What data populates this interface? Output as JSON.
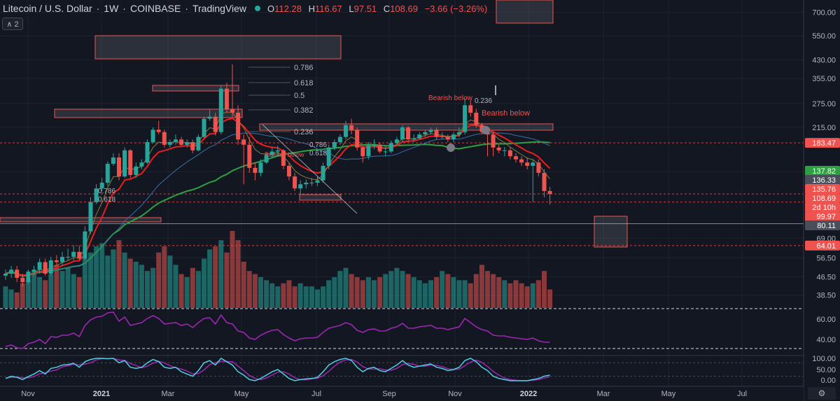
{
  "header": {
    "title": "Litecoin / U.S. Dollar",
    "interval": "1W",
    "exchange": "COINBASE",
    "brand": "TradingView",
    "open_label": "O",
    "open": "112.28",
    "high_label": "H",
    "high": "116.67",
    "low_label": "L",
    "low": "97.51",
    "close_label": "C",
    "close": "108.69",
    "change": "−3.66 (−3.26%)"
  },
  "collapse_button": {
    "label": "∧ 2"
  },
  "colors": {
    "background": "#131722",
    "up": "#26a69a",
    "down": "#ef5350",
    "ema_short": "#e91e1e",
    "ma_long": "#2ea043",
    "ma_mid": "#3a6ea5",
    "rsi": "#9c27b0",
    "stoch_k": "#4dd0e1",
    "stoch_d": "#9c27b0"
  },
  "annotations": {
    "fib_top": [
      "0.786",
      "0.618",
      "0.5",
      "0.382",
      "0.236"
    ],
    "fib_mid": [
      "0.786",
      "0.618"
    ],
    "fib_bottom": [
      "0.786",
      "0.618"
    ],
    "bearish_1": "Bearish below",
    "bearish_2": "Bearish below",
    "bearish_3": "Bearish below",
    "fib_right": "0.236"
  },
  "chart_data": {
    "type": "candlestick",
    "title": "Litecoin / U.S. Dollar",
    "interval": "1W",
    "y_scale": "log",
    "ylim": [
      35,
      750
    ],
    "price_ticks": [
      "700.00",
      "550.00",
      "430.00",
      "355.00",
      "275.00",
      "215.00",
      "136.33",
      "69.00",
      "56.50",
      "46.50",
      "38.50"
    ],
    "price_markers": [
      {
        "label": "183.47",
        "value": 183.47,
        "color": "#ef5350"
      },
      {
        "label": "137.82",
        "value": 137.82,
        "color": "#2ea043"
      },
      {
        "label": "136.33",
        "value": 136.33,
        "color": "#4a4e5a"
      },
      {
        "label": "135.76",
        "value": 135.76,
        "color": "#ef5350"
      },
      {
        "label": "108.69",
        "value": 108.69,
        "color": "#ef5350"
      },
      {
        "label": "2d 10h",
        "value": 104.5,
        "color": "#ef5350"
      },
      {
        "label": "99.97",
        "value": 99.97,
        "color": "#ef5350"
      },
      {
        "label": "80.11",
        "value": 80.11,
        "color": "#4a4e5a"
      },
      {
        "label": "64.01",
        "value": 64.01,
        "color": "#ef5350"
      }
    ],
    "x_labels": [
      "Nov",
      "2021",
      "Mar",
      "May",
      "Jul",
      "Sep",
      "Nov",
      "2022",
      "Mar",
      "May",
      "Jul"
    ],
    "candles": {
      "o": [
        47,
        48,
        50,
        46,
        44,
        49,
        50,
        54,
        48,
        55,
        54,
        57,
        57,
        60,
        56,
        74,
        100,
        115,
        122,
        148,
        158,
        130,
        170,
        132,
        144,
        150,
        185,
        210,
        205,
        180,
        185,
        190,
        180,
        185,
        170,
        195,
        235,
        240,
        205,
        320,
        260,
        250,
        190,
        180,
        142,
        135,
        150,
        162,
        168,
        170,
        145,
        130,
        115,
        120,
        122,
        122,
        125,
        145,
        175,
        185,
        195,
        220,
        210,
        175,
        160,
        178,
        180,
        168,
        168,
        183,
        190,
        215,
        190,
        192,
        200,
        205,
        210,
        195,
        196,
        190,
        200,
        205,
        270,
        250,
        220,
        205,
        200,
        175,
        170,
        170,
        160,
        155,
        150,
        145,
        150,
        135,
        112
      ],
      "c": [
        48,
        50,
        46,
        44,
        49,
        50,
        54,
        48,
        55,
        54,
        57,
        57,
        60,
        56,
        74,
        100,
        115,
        122,
        148,
        158,
        130,
        170,
        132,
        144,
        150,
        185,
        210,
        205,
        180,
        185,
        190,
        180,
        185,
        170,
        195,
        235,
        240,
        205,
        320,
        260,
        250,
        190,
        180,
        142,
        135,
        150,
        162,
        168,
        170,
        145,
        130,
        115,
        120,
        122,
        122,
        125,
        145,
        175,
        185,
        195,
        220,
        210,
        175,
        160,
        178,
        180,
        168,
        168,
        183,
        190,
        215,
        190,
        192,
        200,
        205,
        210,
        195,
        196,
        190,
        200,
        205,
        270,
        250,
        220,
        205,
        200,
        175,
        170,
        170,
        160,
        155,
        150,
        145,
        150,
        135,
        112,
        108.69
      ],
      "h": [
        50,
        52,
        52,
        48,
        50,
        52,
        56,
        56,
        57,
        58,
        60,
        62,
        64,
        64,
        78,
        105,
        120,
        128,
        152,
        165,
        165,
        175,
        172,
        150,
        155,
        190,
        215,
        230,
        210,
        190,
        200,
        195,
        190,
        190,
        200,
        240,
        260,
        250,
        330,
        340,
        410,
        270,
        200,
        195,
        150,
        155,
        165,
        175,
        178,
        172,
        150,
        135,
        125,
        126,
        128,
        130,
        150,
        180,
        190,
        200,
        230,
        235,
        215,
        178,
        185,
        190,
        185,
        178,
        188,
        195,
        220,
        218,
        200,
        205,
        210,
        215,
        215,
        205,
        200,
        205,
        215,
        290,
        285,
        260,
        225,
        210,
        205,
        180,
        176,
        175,
        165,
        160,
        158,
        155,
        155,
        140,
        116.67
      ],
      "l": [
        45,
        46,
        44,
        42,
        43,
        47,
        48,
        47,
        47,
        52,
        52,
        55,
        55,
        55,
        55,
        72,
        98,
        112,
        118,
        145,
        125,
        128,
        128,
        128,
        140,
        148,
        182,
        200,
        175,
        175,
        180,
        178,
        175,
        165,
        168,
        192,
        230,
        198,
        200,
        250,
        240,
        180,
        120,
        135,
        125,
        130,
        148,
        158,
        160,
        140,
        125,
        112,
        108,
        115,
        118,
        118,
        122,
        140,
        170,
        180,
        190,
        200,
        170,
        150,
        155,
        172,
        165,
        160,
        165,
        180,
        185,
        185,
        185,
        190,
        195,
        200,
        190,
        190,
        185,
        185,
        195,
        200,
        240,
        215,
        200,
        160,
        160,
        165,
        160,
        155,
        150,
        145,
        140,
        100,
        130,
        105,
        97.51
      ]
    },
    "volume": [
      7,
      6,
      5,
      8,
      9,
      12,
      10,
      9,
      11,
      14,
      12,
      13,
      11,
      10,
      16,
      18,
      20,
      21,
      17,
      19,
      22,
      18,
      16,
      15,
      14,
      12,
      13,
      18,
      20,
      17,
      14,
      11,
      10,
      13,
      12,
      16,
      19,
      20,
      22,
      18,
      25,
      22,
      15,
      12,
      11,
      10,
      9,
      8,
      7,
      8,
      9,
      7,
      8,
      7,
      7,
      6,
      7,
      9,
      10,
      12,
      13,
      11,
      10,
      9,
      10,
      9,
      10,
      11,
      12,
      13,
      12,
      11,
      10,
      9,
      8,
      9,
      10,
      12,
      11,
      10,
      9,
      9,
      8,
      11,
      14,
      12,
      11,
      10,
      9,
      8,
      9,
      8,
      7,
      8,
      9,
      12,
      6
    ],
    "rsi_ticks": [
      "60.00",
      "40.00"
    ],
    "rsi": [
      30,
      32,
      28,
      27,
      34,
      36,
      40,
      34,
      44,
      43,
      46,
      46,
      49,
      44,
      60,
      68,
      72,
      73,
      78,
      79,
      66,
      72,
      60,
      62,
      64,
      70,
      74,
      70,
      62,
      63,
      64,
      60,
      62,
      57,
      64,
      70,
      71,
      62,
      75,
      64,
      62,
      52,
      50,
      42,
      40,
      46,
      50,
      53,
      54,
      47,
      42,
      38,
      41,
      42,
      42,
      43,
      50,
      56,
      58,
      60,
      64,
      61,
      53,
      50,
      54,
      55,
      52,
      52,
      56,
      58,
      63,
      56,
      56,
      58,
      59,
      60,
      56,
      56,
      54,
      56,
      58,
      70,
      64,
      58,
      54,
      52,
      46,
      45,
      45,
      43,
      42,
      41,
      40,
      42,
      38,
      36,
      36
    ],
    "stoch_ticks": [
      "100.00",
      "50.00",
      "0.00"
    ],
    "stoch_k": [
      10,
      20,
      15,
      5,
      18,
      30,
      45,
      30,
      55,
      60,
      70,
      72,
      78,
      60,
      85,
      95,
      100,
      100,
      98,
      100,
      80,
      90,
      60,
      55,
      60,
      80,
      95,
      85,
      60,
      55,
      60,
      40,
      30,
      20,
      45,
      80,
      90,
      70,
      100,
      85,
      70,
      40,
      25,
      5,
      0,
      10,
      25,
      40,
      50,
      30,
      10,
      0,
      5,
      8,
      10,
      15,
      40,
      70,
      85,
      95,
      100,
      90,
      60,
      40,
      55,
      60,
      45,
      40,
      55,
      70,
      90,
      70,
      60,
      65,
      70,
      75,
      60,
      55,
      45,
      50,
      60,
      90,
      100,
      85,
      60,
      45,
      20,
      10,
      5,
      0,
      0,
      0,
      0,
      5,
      10,
      20,
      25
    ],
    "stoch_d": [
      12,
      15,
      16,
      13,
      13,
      18,
      31,
      35,
      43,
      48,
      62,
      67,
      73,
      70,
      74,
      80,
      93,
      98,
      99,
      99,
      93,
      90,
      77,
      68,
      58,
      65,
      78,
      87,
      80,
      67,
      58,
      52,
      43,
      30,
      32,
      48,
      72,
      80,
      87,
      85,
      85,
      65,
      45,
      23,
      10,
      5,
      12,
      25,
      38,
      40,
      30,
      13,
      5,
      4,
      8,
      11,
      22,
      42,
      65,
      83,
      93,
      95,
      83,
      63,
      52,
      52,
      53,
      48,
      47,
      55,
      72,
      77,
      73,
      65,
      65,
      70,
      68,
      63,
      53,
      50,
      52,
      67,
      83,
      92,
      82,
      63,
      42,
      25,
      12,
      5,
      2,
      0,
      0,
      2,
      5,
      12,
      18
    ]
  }
}
